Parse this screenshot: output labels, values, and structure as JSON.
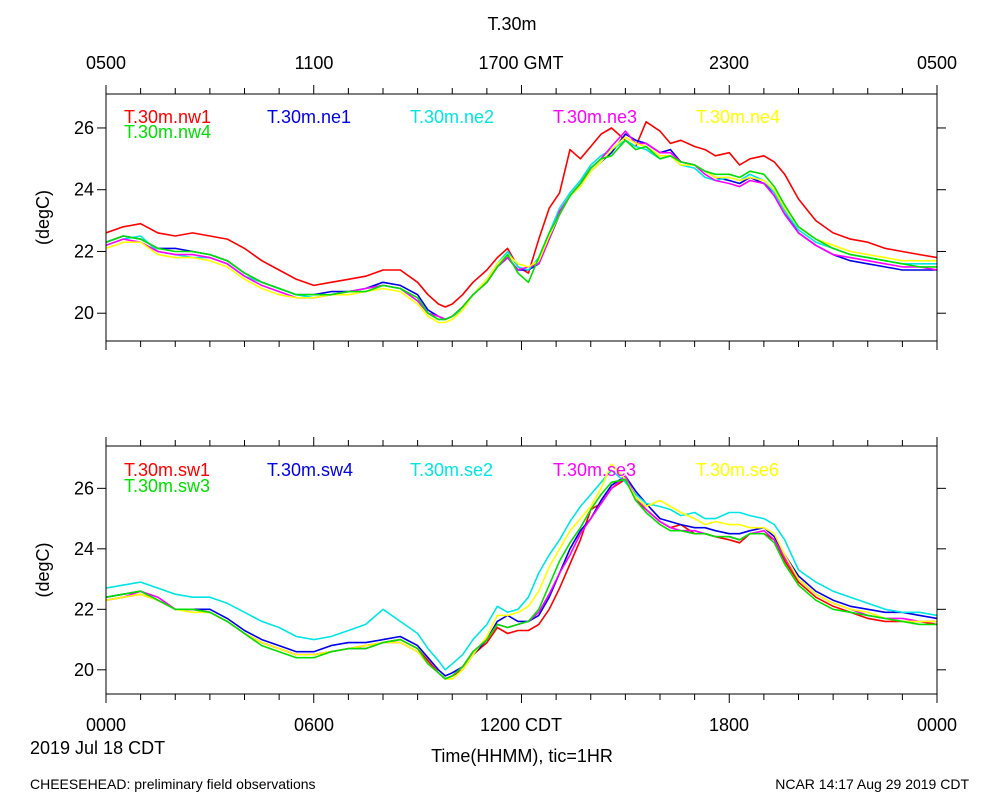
{
  "page": {
    "title": "T.30m",
    "top_axis_ticks": [
      "0500",
      "1100",
      "1700 GMT",
      "2300",
      "0500"
    ],
    "bottom_axis_ticks": [
      "0000",
      "0600",
      "1200 CDT",
      "1800",
      "0000"
    ],
    "xlabel": "Time(HHMM), tic=1HR",
    "date_label": "2019 Jul 18 CDT",
    "footer_left": "CHEESEHEAD: preliminary field observations",
    "footer_right": "NCAR 14:17 Aug 29 2019 CDT"
  },
  "chart_data": [
    {
      "type": "line",
      "title": "T.30m",
      "ylabel": "(degC)",
      "xlabel": "Time(HHMM), tic=1HR",
      "x_unit": "hours since 0000 CDT 2019 Jul 18",
      "xlim": [
        0,
        24
      ],
      "ylim": [
        19.1,
        27.1
      ],
      "yticks": [
        20,
        22,
        24,
        26
      ],
      "ytick_labels": [
        "20",
        "22",
        "24",
        "26"
      ],
      "x": [
        0,
        0.5,
        1,
        1.5,
        2,
        2.5,
        3,
        3.5,
        4,
        4.5,
        5,
        5.5,
        6,
        6.5,
        7,
        7.5,
        8,
        8.5,
        9,
        9.3,
        9.6,
        9.8,
        10,
        10.3,
        10.6,
        11,
        11.3,
        11.6,
        11.9,
        12.2,
        12.5,
        12.8,
        13.1,
        13.4,
        13.7,
        14,
        14.3,
        14.6,
        15,
        15.3,
        15.6,
        16,
        16.3,
        16.6,
        17,
        17.3,
        17.6,
        18,
        18.3,
        18.6,
        19,
        19.3,
        19.6,
        20,
        20.5,
        21,
        21.5,
        22,
        22.5,
        23,
        23.5,
        24
      ],
      "series": [
        {
          "name": "T.30m.nw1",
          "color": "#ff0000",
          "values": [
            22.6,
            22.8,
            22.9,
            22.6,
            22.5,
            22.6,
            22.5,
            22.4,
            22.1,
            21.7,
            21.4,
            21.1,
            20.9,
            21.0,
            21.1,
            21.2,
            21.4,
            21.4,
            21.0,
            20.6,
            20.3,
            20.2,
            20.3,
            20.6,
            21.0,
            21.4,
            21.8,
            22.1,
            21.5,
            21.3,
            22.4,
            23.4,
            23.9,
            25.3,
            25.0,
            25.4,
            25.8,
            26.0,
            25.6,
            25.4,
            26.2,
            25.9,
            25.5,
            25.6,
            25.4,
            25.3,
            25.1,
            25.2,
            24.8,
            25.0,
            25.1,
            24.9,
            24.5,
            23.7,
            23.0,
            22.6,
            22.4,
            22.3,
            22.1,
            22.0,
            21.9,
            21.8
          ]
        },
        {
          "name": "T.30m.ne1",
          "color": "#0000e6",
          "values": [
            22.3,
            22.5,
            22.4,
            22.1,
            22.1,
            22.0,
            21.9,
            21.7,
            21.3,
            21.0,
            20.8,
            20.6,
            20.6,
            20.7,
            20.7,
            20.8,
            21.0,
            20.9,
            20.6,
            20.1,
            19.9,
            19.8,
            19.9,
            20.2,
            20.6,
            21.0,
            21.5,
            21.8,
            21.4,
            21.4,
            21.6,
            22.4,
            23.2,
            23.8,
            24.2,
            24.6,
            24.9,
            25.2,
            25.8,
            25.6,
            25.5,
            25.2,
            25.3,
            24.9,
            24.8,
            24.6,
            24.4,
            24.3,
            24.2,
            24.4,
            24.2,
            23.9,
            23.3,
            22.6,
            22.2,
            21.9,
            21.7,
            21.6,
            21.5,
            21.4,
            21.4,
            21.4
          ]
        },
        {
          "name": "T.30m.ne2",
          "color": "#00e5e5",
          "values": [
            22.2,
            22.4,
            22.5,
            22.0,
            21.9,
            21.8,
            21.8,
            21.6,
            21.2,
            21.0,
            20.8,
            20.6,
            20.5,
            20.6,
            20.7,
            20.8,
            20.9,
            20.8,
            20.4,
            20.0,
            19.8,
            19.8,
            19.9,
            20.1,
            20.6,
            21.1,
            21.6,
            22.0,
            21.5,
            21.4,
            21.8,
            22.6,
            23.4,
            23.9,
            24.3,
            24.8,
            25.1,
            25.3,
            25.6,
            25.4,
            25.3,
            25.0,
            25.1,
            24.8,
            24.7,
            24.4,
            24.3,
            24.4,
            24.3,
            24.5,
            24.3,
            23.9,
            23.3,
            22.7,
            22.3,
            22.1,
            21.9,
            21.8,
            21.7,
            21.6,
            21.6,
            21.6
          ]
        },
        {
          "name": "T.30m.ne3",
          "color": "#ff00ff",
          "values": [
            22.2,
            22.4,
            22.3,
            22.0,
            21.9,
            21.9,
            21.8,
            21.6,
            21.2,
            20.9,
            20.7,
            20.5,
            20.5,
            20.6,
            20.7,
            20.8,
            20.9,
            20.8,
            20.4,
            20.0,
            19.9,
            19.8,
            19.9,
            20.2,
            20.6,
            21.0,
            21.5,
            21.8,
            21.4,
            21.5,
            21.6,
            22.4,
            23.3,
            23.8,
            24.2,
            24.7,
            25.0,
            25.4,
            25.9,
            25.5,
            25.5,
            25.2,
            25.2,
            24.9,
            24.8,
            24.5,
            24.3,
            24.2,
            24.1,
            24.3,
            24.2,
            23.8,
            23.2,
            22.6,
            22.2,
            21.9,
            21.8,
            21.7,
            21.6,
            21.5,
            21.5,
            21.4
          ]
        },
        {
          "name": "T.30m.ne4",
          "color": "#ffff00",
          "values": [
            22.1,
            22.3,
            22.3,
            21.9,
            21.8,
            21.8,
            21.7,
            21.5,
            21.1,
            20.8,
            20.6,
            20.5,
            20.5,
            20.6,
            20.6,
            20.7,
            20.8,
            20.7,
            20.3,
            19.9,
            19.7,
            19.7,
            19.8,
            20.1,
            20.6,
            21.1,
            21.6,
            21.9,
            21.6,
            21.5,
            21.7,
            22.5,
            23.2,
            23.8,
            24.1,
            24.6,
            24.9,
            25.3,
            25.7,
            25.5,
            25.4,
            25.1,
            25.1,
            24.8,
            24.8,
            24.6,
            24.4,
            24.4,
            24.3,
            24.4,
            24.3,
            24.0,
            23.4,
            22.8,
            22.4,
            22.2,
            22.0,
            21.9,
            21.8,
            21.7,
            21.7,
            21.7
          ]
        },
        {
          "name": "T.30m.nw4",
          "color": "#00e000",
          "values": [
            22.3,
            22.5,
            22.4,
            22.1,
            22.0,
            22.0,
            21.9,
            21.7,
            21.3,
            21.0,
            20.8,
            20.6,
            20.6,
            20.6,
            20.7,
            20.7,
            20.9,
            20.8,
            20.5,
            20.0,
            19.8,
            19.8,
            19.9,
            20.2,
            20.6,
            21.0,
            21.5,
            21.9,
            21.3,
            21.0,
            21.8,
            22.6,
            23.2,
            23.8,
            24.2,
            24.7,
            25.0,
            25.1,
            25.6,
            25.3,
            25.4,
            25.0,
            25.1,
            24.9,
            24.8,
            24.6,
            24.5,
            24.5,
            24.4,
            24.6,
            24.5,
            24.1,
            23.5,
            22.8,
            22.4,
            22.1,
            21.9,
            21.8,
            21.7,
            21.6,
            21.5,
            21.5
          ]
        }
      ]
    },
    {
      "type": "line",
      "ylabel": "(degC)",
      "xlabel": "Time(HHMM), tic=1HR",
      "x_unit": "hours since 0000 CDT 2019 Jul 18",
      "xlim": [
        0,
        24
      ],
      "ylim": [
        19.2,
        27.4
      ],
      "yticks": [
        20,
        22,
        24,
        26
      ],
      "ytick_labels": [
        "20",
        "22",
        "24",
        "26"
      ],
      "x": [
        0,
        0.5,
        1,
        1.5,
        2,
        2.5,
        3,
        3.5,
        4,
        4.5,
        5,
        5.5,
        6,
        6.5,
        7,
        7.5,
        8,
        8.5,
        9,
        9.3,
        9.6,
        9.8,
        10,
        10.3,
        10.6,
        11,
        11.3,
        11.6,
        11.9,
        12.2,
        12.5,
        12.8,
        13.1,
        13.4,
        13.7,
        14,
        14.3,
        14.6,
        15,
        15.3,
        15.6,
        16,
        16.3,
        16.6,
        17,
        17.3,
        17.6,
        18,
        18.3,
        18.6,
        19,
        19.3,
        19.6,
        20,
        20.5,
        21,
        21.5,
        22,
        22.5,
        23,
        23.5,
        24
      ],
      "series": [
        {
          "name": "T.30m.sw1",
          "color": "#ff0000",
          "values": [
            22.3,
            22.4,
            22.5,
            22.3,
            22.0,
            22.0,
            21.9,
            21.6,
            21.2,
            20.9,
            20.7,
            20.5,
            20.5,
            20.6,
            20.7,
            20.8,
            20.9,
            21.0,
            20.7,
            20.3,
            19.9,
            19.7,
            19.8,
            20.0,
            20.5,
            20.9,
            21.4,
            21.2,
            21.3,
            21.3,
            21.5,
            22.0,
            22.7,
            23.5,
            24.3,
            25.3,
            25.5,
            26.0,
            26.3,
            25.6,
            25.3,
            24.9,
            24.7,
            24.8,
            24.5,
            24.5,
            24.4,
            24.3,
            24.2,
            24.5,
            24.5,
            24.3,
            23.6,
            22.9,
            22.4,
            22.1,
            21.9,
            21.7,
            21.6,
            21.6,
            21.6,
            21.5
          ]
        },
        {
          "name": "T.30m.sw4",
          "color": "#0000e6",
          "values": [
            22.4,
            22.5,
            22.6,
            22.3,
            22.0,
            22.0,
            22.0,
            21.7,
            21.3,
            21.0,
            20.8,
            20.6,
            20.6,
            20.8,
            20.9,
            20.9,
            21.0,
            21.1,
            20.8,
            20.4,
            20.0,
            19.8,
            19.9,
            20.1,
            20.5,
            21.0,
            21.6,
            21.8,
            21.6,
            21.6,
            21.8,
            22.4,
            23.2,
            24.0,
            24.6,
            25.0,
            25.6,
            26.1,
            26.4,
            25.9,
            25.5,
            25.0,
            24.9,
            24.8,
            24.7,
            24.7,
            24.6,
            24.5,
            24.5,
            24.6,
            24.7,
            24.4,
            23.8,
            23.1,
            22.6,
            22.3,
            22.1,
            22.0,
            21.9,
            21.9,
            21.8,
            21.7
          ]
        },
        {
          "name": "T.30m.se2",
          "color": "#00e5e5",
          "values": [
            22.7,
            22.8,
            22.9,
            22.7,
            22.5,
            22.4,
            22.4,
            22.2,
            21.9,
            21.6,
            21.4,
            21.1,
            21.0,
            21.1,
            21.3,
            21.5,
            22.0,
            21.6,
            21.2,
            20.7,
            20.3,
            20.0,
            20.2,
            20.5,
            21.0,
            21.5,
            22.1,
            21.9,
            22.0,
            22.4,
            23.2,
            23.8,
            24.3,
            24.9,
            25.4,
            25.8,
            26.2,
            26.6,
            26.2,
            25.8,
            25.5,
            25.4,
            25.3,
            25.1,
            25.2,
            25.0,
            25.0,
            25.2,
            25.2,
            25.1,
            25.0,
            24.8,
            24.3,
            23.3,
            22.9,
            22.6,
            22.4,
            22.2,
            22.0,
            21.9,
            21.9,
            21.8
          ]
        },
        {
          "name": "T.30m.se3",
          "color": "#ff00ff",
          "values": [
            22.3,
            22.4,
            22.6,
            22.4,
            22.0,
            22.0,
            21.9,
            21.6,
            21.2,
            20.9,
            20.7,
            20.5,
            20.5,
            20.6,
            20.7,
            20.7,
            20.9,
            20.9,
            20.6,
            20.2,
            19.9,
            19.7,
            19.8,
            20.1,
            20.6,
            21.0,
            21.5,
            21.4,
            21.5,
            21.6,
            21.9,
            22.5,
            23.2,
            23.8,
            24.5,
            25.0,
            25.5,
            26.0,
            26.4,
            25.7,
            25.3,
            24.9,
            24.7,
            24.6,
            24.6,
            24.5,
            24.4,
            24.4,
            24.3,
            24.5,
            24.6,
            24.3,
            23.7,
            23.0,
            22.5,
            22.2,
            22.0,
            21.8,
            21.7,
            21.7,
            21.6,
            21.6
          ]
        },
        {
          "name": "T.30m.se6",
          "color": "#ffff00",
          "values": [
            22.3,
            22.4,
            22.5,
            22.3,
            22.0,
            21.9,
            21.9,
            21.6,
            21.2,
            20.9,
            20.7,
            20.5,
            20.5,
            20.6,
            20.7,
            20.8,
            20.9,
            20.9,
            20.6,
            20.2,
            19.9,
            19.7,
            19.7,
            20.0,
            20.5,
            21.1,
            21.8,
            21.8,
            21.9,
            22.1,
            22.6,
            23.4,
            24.0,
            24.6,
            25.0,
            25.4,
            26.0,
            26.8,
            26.3,
            25.7,
            25.4,
            25.6,
            25.4,
            25.2,
            25.0,
            24.8,
            24.9,
            24.8,
            24.8,
            24.7,
            24.7,
            24.5,
            23.8,
            23.0,
            22.5,
            22.2,
            22.0,
            21.9,
            21.7,
            21.6,
            21.6,
            21.6
          ]
        },
        {
          "name": "T.30m.sw3",
          "color": "#00e000",
          "values": [
            22.4,
            22.5,
            22.6,
            22.3,
            22.0,
            22.0,
            21.9,
            21.6,
            21.2,
            20.8,
            20.6,
            20.4,
            20.4,
            20.6,
            20.7,
            20.7,
            20.9,
            21.0,
            20.7,
            20.2,
            19.9,
            19.7,
            19.8,
            20.1,
            20.6,
            21.0,
            21.5,
            21.4,
            21.5,
            21.6,
            22.0,
            22.8,
            23.6,
            24.2,
            24.7,
            25.3,
            25.8,
            26.2,
            26.3,
            25.6,
            25.2,
            24.8,
            24.6,
            24.6,
            24.5,
            24.5,
            24.4,
            24.4,
            24.3,
            24.5,
            24.5,
            24.2,
            23.5,
            22.8,
            22.3,
            22.0,
            21.9,
            21.8,
            21.7,
            21.6,
            21.5,
            21.5
          ]
        }
      ]
    }
  ]
}
